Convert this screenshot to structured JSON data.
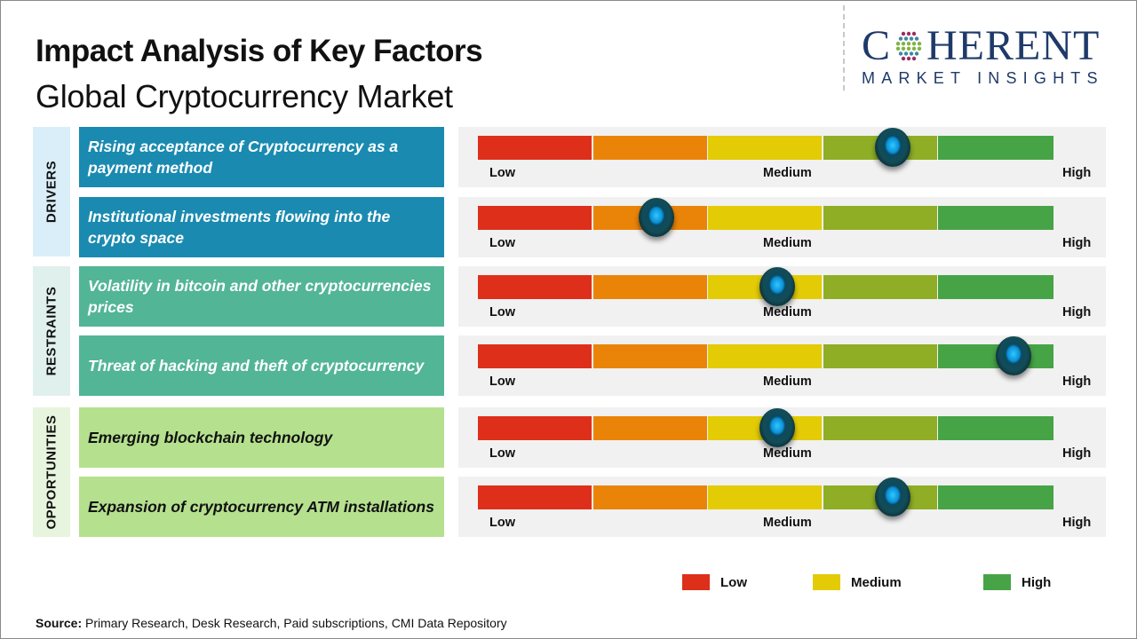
{
  "header": {
    "title": "Impact Analysis of Key Factors",
    "subtitle": "Global Cryptocurrency Market"
  },
  "logo": {
    "top_before": "C",
    "top_after": "HERENT",
    "bottom": "MARKET INSIGHTS",
    "icon": "globe-dots-icon"
  },
  "scale": {
    "low": "Low",
    "medium": "Medium",
    "high": "High",
    "segment_colors": [
      "#de2f1b",
      "#ea8408",
      "#e3cb06",
      "#8fae25",
      "#47a446"
    ]
  },
  "categories": [
    {
      "name": "DRIVERS",
      "panel_color": "#d9eef8",
      "factor_color": "#1a8ab0",
      "text_color": "#ffffff"
    },
    {
      "name": "RESTRAINTS",
      "panel_color": "#e0f0ec",
      "factor_color": "#52b596",
      "text_color": "#ffffff"
    },
    {
      "name": "OPPORTUNITIES",
      "panel_color": "#e7f4de",
      "factor_color": "#b5e18f",
      "text_color": "#111111"
    }
  ],
  "chart_data": {
    "type": "gauge-rows",
    "title": "Impact Analysis of Key Factors",
    "subtitle": "Global Cryptocurrency Market",
    "scale": {
      "min": 0,
      "max": 1,
      "labels": [
        "Low",
        "Medium",
        "High"
      ],
      "segments": 5
    },
    "factors": [
      {
        "category": "DRIVERS",
        "label": "Rising acceptance of Cryptocurrency as a payment method",
        "impact": 0.72,
        "impact_level": "Medium-High"
      },
      {
        "category": "DRIVERS",
        "label": "Institutional investments flowing into the crypto space",
        "impact": 0.31,
        "impact_level": "Low-Medium"
      },
      {
        "category": "RESTRAINTS",
        "label": "Volatility in bitcoin and other cryptocurrencies prices",
        "impact": 0.52,
        "impact_level": "Medium"
      },
      {
        "category": "RESTRAINTS",
        "label": "Threat of hacking and theft of cryptocurrency",
        "impact": 0.93,
        "impact_level": "High"
      },
      {
        "category": "OPPORTUNITIES",
        "label": "Emerging blockchain technology",
        "impact": 0.52,
        "impact_level": "Medium"
      },
      {
        "category": "OPPORTUNITIES",
        "label": "Expansion of cryptocurrency ATM installations",
        "impact": 0.72,
        "impact_level": "Medium-High"
      }
    ],
    "legend": [
      {
        "label": "Low",
        "color": "#de2f1b"
      },
      {
        "label": "Medium",
        "color": "#e3cb06"
      },
      {
        "label": "High",
        "color": "#47a446"
      }
    ],
    "legend_position": "bottom-right"
  },
  "footer": {
    "source_label": "Source:",
    "source_text": " Primary Research, Desk Research, Paid subscriptions, CMI Data Repository"
  }
}
